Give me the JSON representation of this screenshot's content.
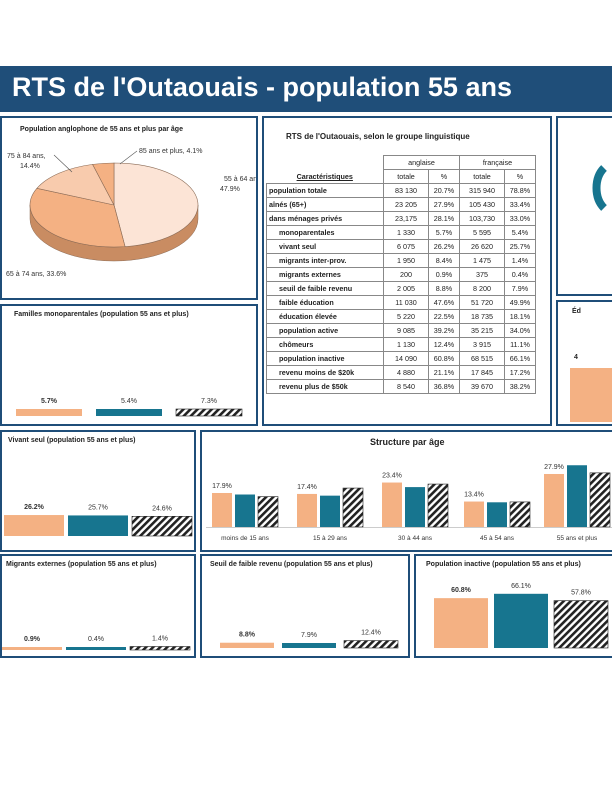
{
  "header": {
    "title": "RTS de l'Outaouais - population 55 ans"
  },
  "colors": {
    "anglaise": "#f4b183",
    "francaise": "#17758f",
    "hatch": "#222222",
    "banner": "#1f4e79"
  },
  "pie_panel": {
    "title": "Population anglophone de 55 ans et plus par âge",
    "chart_data": {
      "type": "pie",
      "title": "Population anglophone de 55 ans et plus par âge",
      "slices": [
        {
          "label": "55 à 64 ans",
          "value": 47.9,
          "text": "55 à 64 ans, 47.9%"
        },
        {
          "label": "65 à 74 ans",
          "value": 33.6,
          "text": "65 à 74 ans, 33.6%"
        },
        {
          "label": "75 à 84 ans",
          "value": 14.4,
          "text_line1": "75 à 84 ans,",
          "text_line2": "14.4%"
        },
        {
          "label": "85 ans et plus",
          "value": 4.1,
          "text": "85 ans et plus, 4.1%"
        }
      ]
    }
  },
  "table": {
    "title": "RTS de l'Outaouais, selon le groupe linguistique",
    "col_group": [
      "anglaise",
      "française"
    ],
    "caract_label": "Caractéristiques",
    "subheaders": [
      "totale",
      "%",
      "totale",
      "%"
    ],
    "rows": [
      {
        "label": "population totale",
        "a_tot": "83 130",
        "a_pct": "20.7%",
        "f_tot": "315 940",
        "f_pct": "78.8%"
      },
      {
        "label": "aînés (65+)",
        "a_tot": "23 205",
        "a_pct": "27.9%",
        "f_tot": "105 430",
        "f_pct": "33.4%"
      },
      {
        "label": "dans ménages privés",
        "a_tot": "23,175",
        "a_pct": "28.1%",
        "f_tot": "103,730",
        "f_pct": "33.0%"
      },
      {
        "label": "monoparentales",
        "a_tot": "1 330",
        "a_pct": "5.7%",
        "f_tot": "5 595",
        "f_pct": "5.4%"
      },
      {
        "label": "vivant seul",
        "a_tot": "6 075",
        "a_pct": "26.2%",
        "f_tot": "26 620",
        "f_pct": "25.7%"
      },
      {
        "label": "migrants inter-prov.",
        "a_tot": "1 950",
        "a_pct": "8.4%",
        "f_tot": "1 475",
        "f_pct": "1.4%"
      },
      {
        "label": "migrants externes",
        "a_tot": "200",
        "a_pct": "0.9%",
        "f_tot": "375",
        "f_pct": "0.4%"
      },
      {
        "label": "seuil de faible revenu",
        "a_tot": "2 005",
        "a_pct": "8.8%",
        "f_tot": "8 200",
        "f_pct": "7.9%"
      },
      {
        "label": "faible éducation",
        "a_tot": "11 030",
        "a_pct": "47.6%",
        "f_tot": "51 720",
        "f_pct": "49.9%"
      },
      {
        "label": "éducation élevée",
        "a_tot": "5 220",
        "a_pct": "22.5%",
        "f_tot": "18 735",
        "f_pct": "18.1%"
      },
      {
        "label": "population active",
        "a_tot": "9 085",
        "a_pct": "39.2%",
        "f_tot": "35 215",
        "f_pct": "34.0%"
      },
      {
        "label": "chômeurs",
        "a_tot": "1 130",
        "a_pct": "12.4%",
        "f_tot": "3 915",
        "f_pct": "11.1%"
      },
      {
        "label": "population inactive",
        "a_tot": "14 090",
        "a_pct": "60.8%",
        "f_tot": "68 515",
        "f_pct": "66.1%"
      },
      {
        "label": "revenu moins de $20k",
        "a_tot": "4 880",
        "a_pct": "21.1%",
        "f_tot": "17 845",
        "f_pct": "17.2%"
      },
      {
        "label": "revenu plus de $50k",
        "a_tot": "8 540",
        "a_pct": "36.8%",
        "f_tot": "39 670",
        "f_pct": "38.2%"
      }
    ]
  },
  "small_charts": {
    "monoparentales": {
      "title": "Familles monoparentales (population 55 ans et plus)",
      "chart_data": {
        "type": "bar",
        "values": [
          5.7,
          5.4,
          7.3
        ],
        "labels": [
          "5.7%",
          "5.4%",
          "7.3%"
        ]
      }
    },
    "vivant_seul": {
      "title": "Vivant seul (population 55 ans et plus)",
      "chart_data": {
        "type": "bar",
        "values": [
          26.2,
          25.7,
          24.6
        ],
        "labels": [
          "26.2%",
          "25.7%",
          "24.6%"
        ]
      }
    },
    "migrants": {
      "title": "Migrants externes (population 55 ans et plus)",
      "chart_data": {
        "type": "bar",
        "values": [
          0.9,
          0.4,
          1.4
        ],
        "labels": [
          "0.9%",
          "0.4%",
          "1.4%"
        ]
      }
    },
    "seuil": {
      "title": "Seuil de faible revenu (population 55 ans et plus)",
      "chart_data": {
        "type": "bar",
        "values": [
          8.8,
          7.9,
          12.4
        ],
        "labels": [
          "8.8%",
          "7.9%",
          "12.4%"
        ]
      }
    },
    "inactive": {
      "title": "Population inactive (population 55 ans et plus)",
      "chart_data": {
        "type": "bar",
        "values": [
          60.8,
          66.1,
          57.8
        ],
        "labels": [
          "60.8%",
          "66.1%",
          "57.8%"
        ]
      }
    }
  },
  "structure": {
    "title": "Structure par âge",
    "chart_data": {
      "type": "bar",
      "title": "Structure par âge",
      "categories": [
        "moins de 15 ans",
        "15 à 29 ans",
        "30 à 44 ans",
        "45 à 54 ans",
        "55 ans et plus"
      ],
      "series": [
        {
          "values": [
            17.9,
            17.4,
            23.4,
            13.4,
            27.9
          ],
          "labels": [
            "17.9%",
            "17.4%",
            "23.4%",
            "13.4%",
            "27.9%"
          ]
        },
        {
          "values": [
            17.1,
            16.5,
            21.0,
            13.0,
            32.5
          ]
        },
        {
          "values": [
            16.0,
            20.5,
            22.6,
            13.2,
            28.5
          ]
        }
      ]
    }
  },
  "right_edge": {
    "partial_title": "Éd",
    "partial_label": "4"
  }
}
